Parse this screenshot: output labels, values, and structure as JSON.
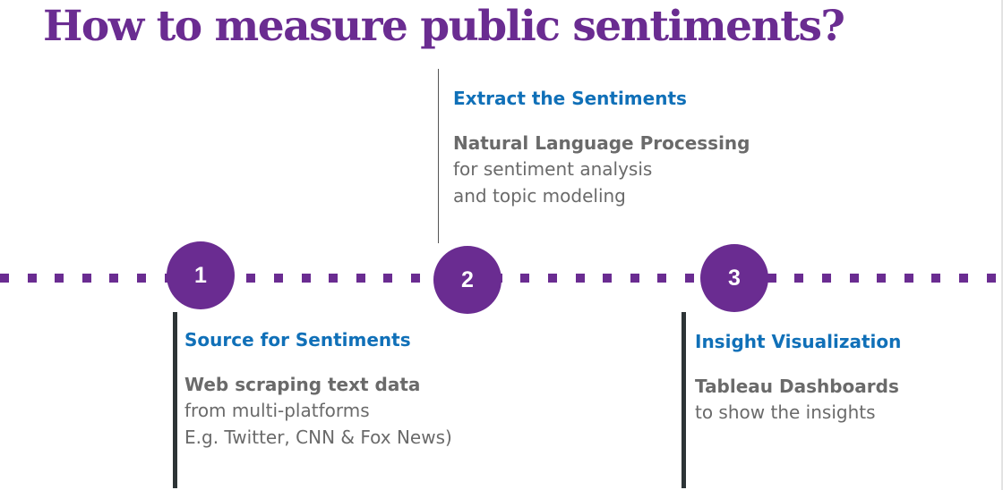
{
  "title": "How to measure public sentiments?",
  "colors": {
    "accent": "#6a2c91",
    "heading_blue": "#1070b8",
    "body_gray": "#6a6a6a"
  },
  "steps": [
    {
      "number": "1",
      "heading": "Source for Sentiments",
      "detail_bold": "Web scraping text data",
      "detail_lines": [
        "from multi-platforms",
        "E.g. Twitter, CNN & Fox News)"
      ]
    },
    {
      "number": "2",
      "heading": "Extract the Sentiments",
      "detail_bold": "Natural Language Processing",
      "detail_lines": [
        "for sentiment analysis",
        "and topic modeling"
      ]
    },
    {
      "number": "3",
      "heading": "Insight Visualization",
      "detail_bold": "Tableau Dashboards",
      "detail_lines": [
        "to show the insights"
      ]
    }
  ]
}
